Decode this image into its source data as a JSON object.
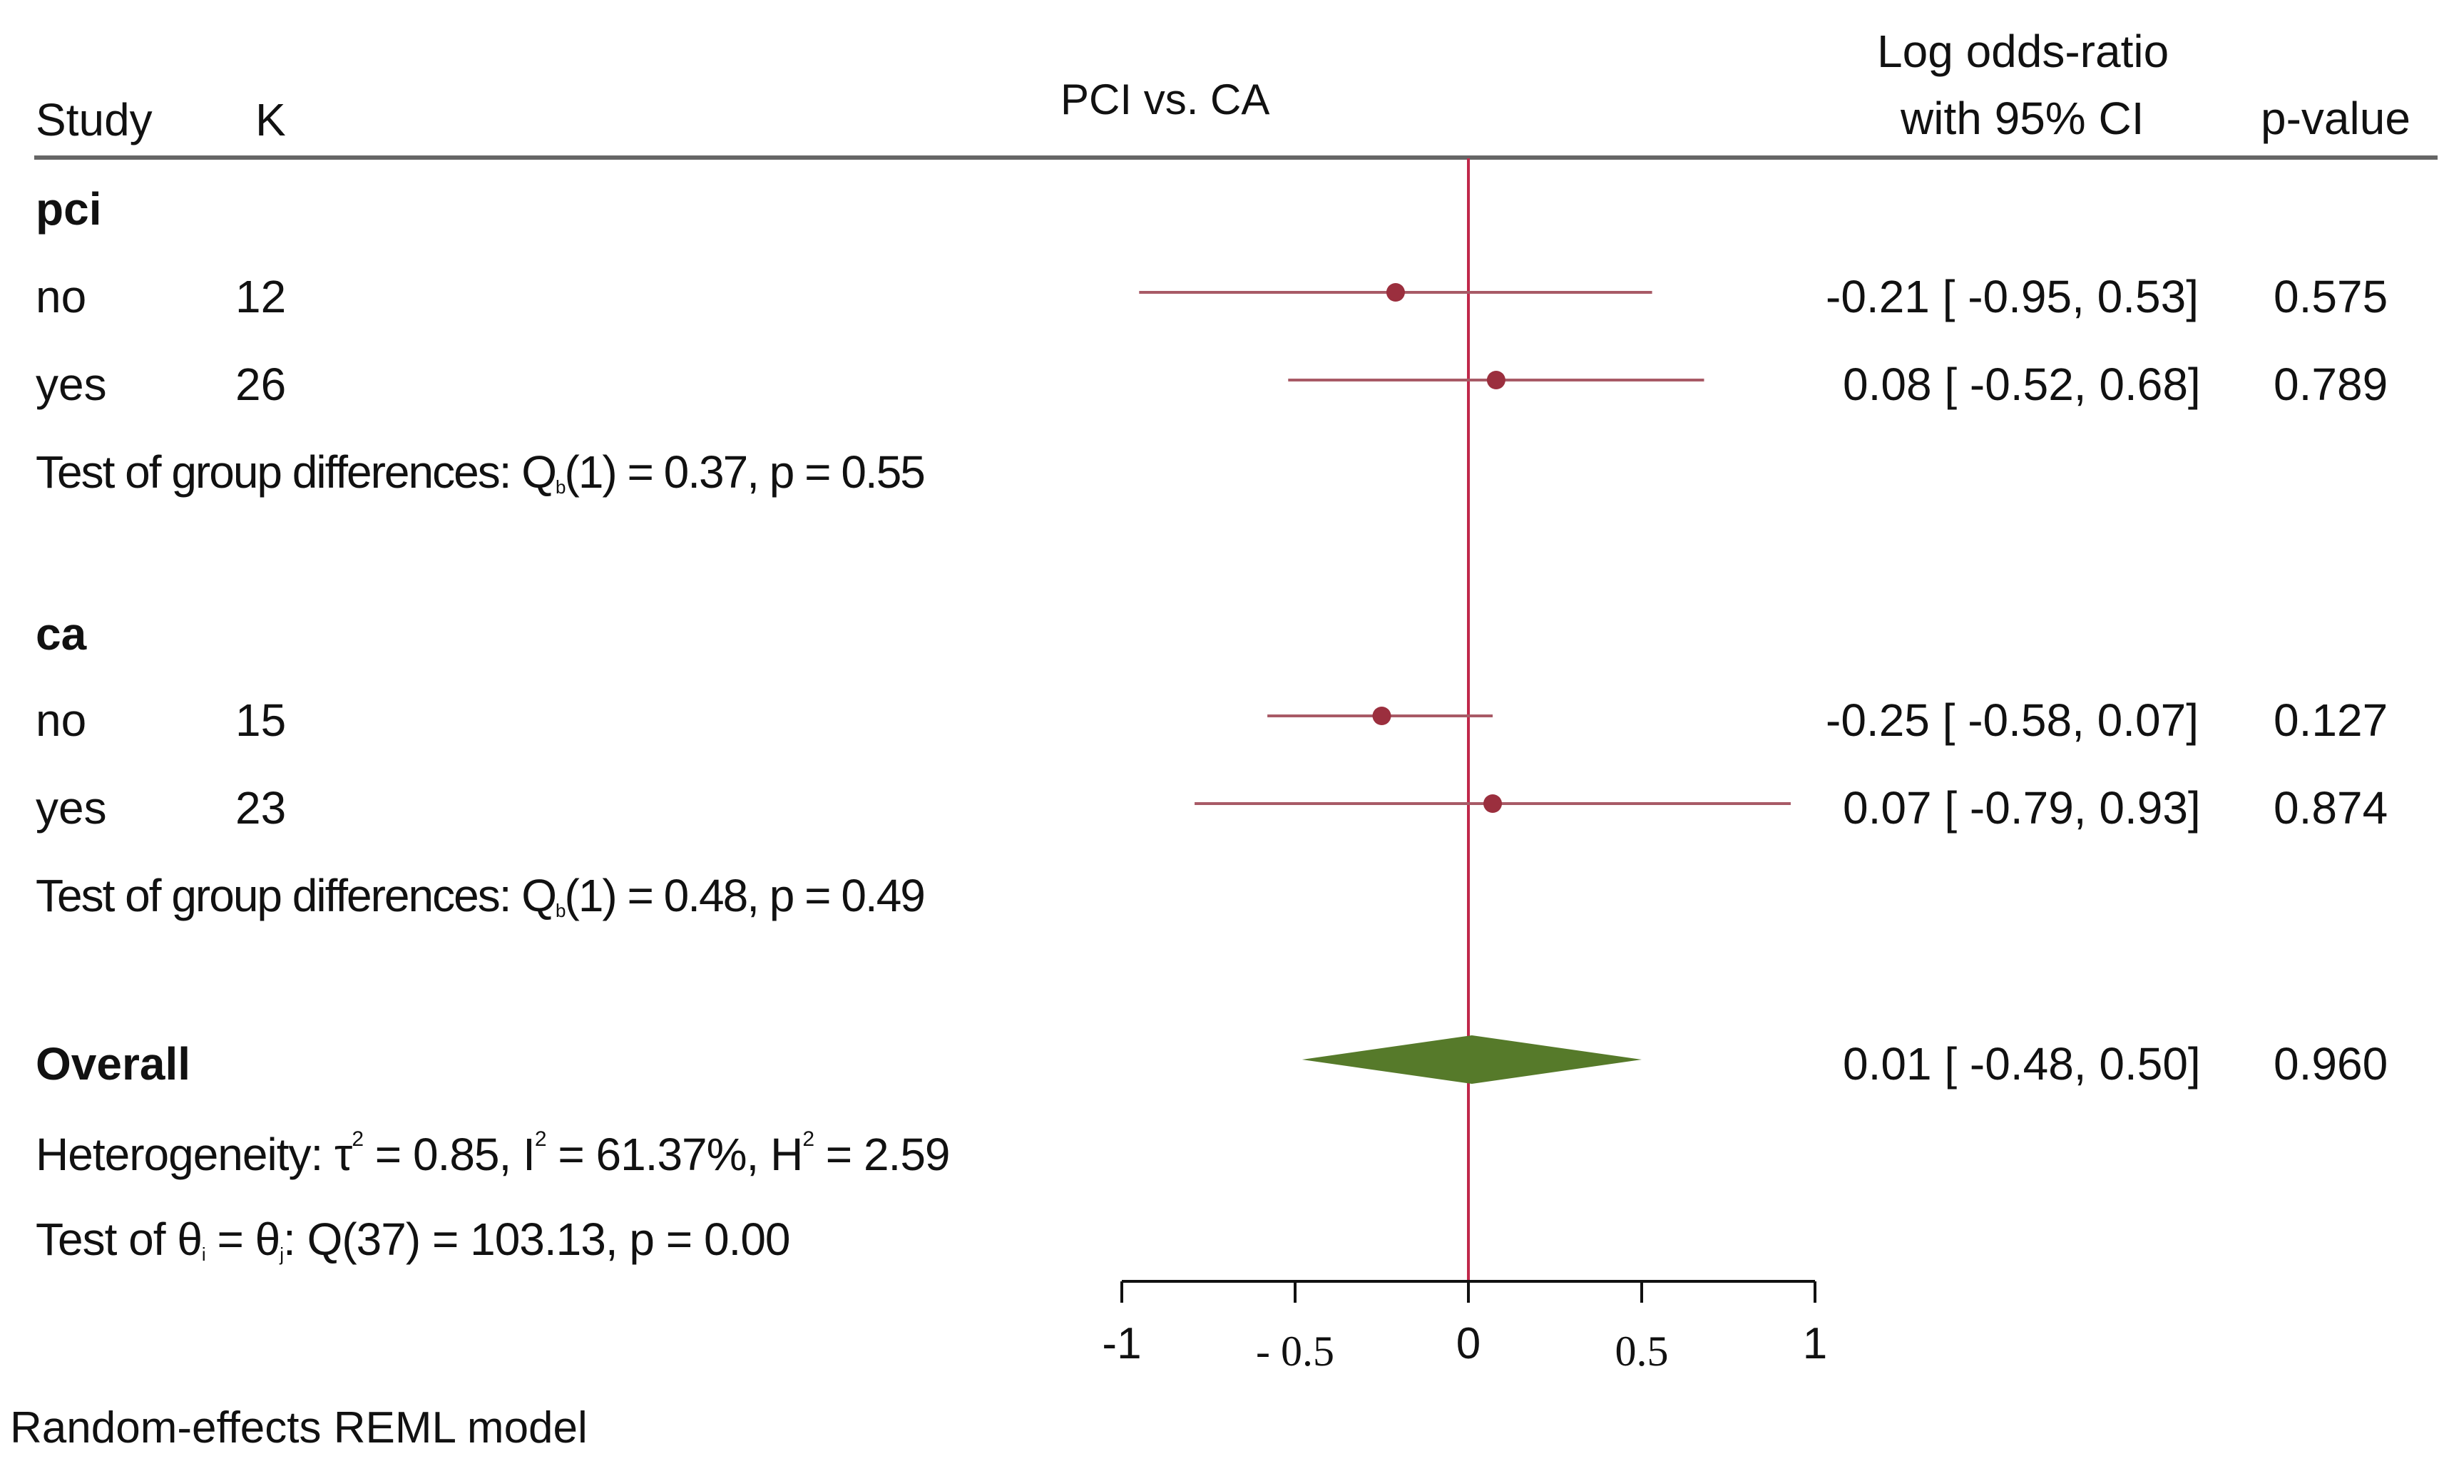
{
  "header": {
    "study": "Study",
    "k": "K",
    "title": "PCI vs. CA",
    "effect_line1": "Log odds-ratio",
    "effect_line2": "with 95% CI",
    "pvalue": "p-value"
  },
  "groups": [
    {
      "name": "pci",
      "rows": [
        {
          "label": "no",
          "k": "12",
          "ci_text": "-0.21 [ -0.95,  0.53]",
          "p": "0.575"
        },
        {
          "label": "yes",
          "k": "26",
          "ci_text": "0.08 [ -0.52,  0.68]",
          "p": "0.789"
        }
      ],
      "test_text": "Test of group differences: Q",
      "test_sub": "b",
      "test_rest": "(1) = 0.37, p = 0.55"
    },
    {
      "name": "ca",
      "rows": [
        {
          "label": "no",
          "k": "15",
          "ci_text": "-0.25 [ -0.58,  0.07]",
          "p": "0.127"
        },
        {
          "label": "yes",
          "k": "23",
          "ci_text": "0.07 [ -0.79,  0.93]",
          "p": "0.874"
        }
      ],
      "test_text": "Test of group differences: Q",
      "test_sub": "b",
      "test_rest": "(1) = 0.48, p = 0.49"
    }
  ],
  "overall": {
    "label": "Overall",
    "ci_text": "0.01 [ -0.48,  0.50]",
    "p": "0.960",
    "het_prefix": "Heterogeneity: τ",
    "het_tau_sup": "2",
    "het_mid1": " = 0.85, I",
    "het_i_sup": "2",
    "het_mid2": " = 61.37%, H",
    "het_h_sup": "2",
    "het_end": " = 2.59",
    "test_prefix": "Test of θ",
    "test_sub_i": "i",
    "test_eq": " = θ",
    "test_sub_j": "j",
    "test_rest": ": Q(37) = 103.13, p = 0.00"
  },
  "footer": "Random-effects REML model",
  "colors": {
    "study_marker": "#9b2f3e",
    "ci_line": "#a85a66",
    "ref_line": "#c0284a",
    "diamond": "#567a2a",
    "axis": "#111111",
    "header_rule": "#666666"
  },
  "chart_data": {
    "type": "forest",
    "title": "PCI vs. CA",
    "xlabel": "Log odds-ratio with 95% CI",
    "xlim": [
      -1,
      1
    ],
    "reference_line": 0,
    "ticks": [
      -1,
      -0.5,
      0,
      0.5,
      1
    ],
    "tick_labels": [
      "-1",
      "- 0.5",
      "0",
      "0.5",
      "1"
    ],
    "studies": [
      {
        "group": "pci",
        "label": "no",
        "k": 12,
        "estimate": -0.21,
        "lower": -0.95,
        "upper": 0.53,
        "p": 0.575
      },
      {
        "group": "pci",
        "label": "yes",
        "k": 26,
        "estimate": 0.08,
        "lower": -0.52,
        "upper": 0.68,
        "p": 0.789
      },
      {
        "group": "ca",
        "label": "no",
        "k": 15,
        "estimate": -0.25,
        "lower": -0.58,
        "upper": 0.07,
        "p": 0.127
      },
      {
        "group": "ca",
        "label": "yes",
        "k": 23,
        "estimate": 0.07,
        "lower": -0.79,
        "upper": 0.93,
        "p": 0.874
      }
    ],
    "overall": {
      "estimate": 0.01,
      "lower": -0.48,
      "upper": 0.5,
      "p": 0.96
    }
  }
}
